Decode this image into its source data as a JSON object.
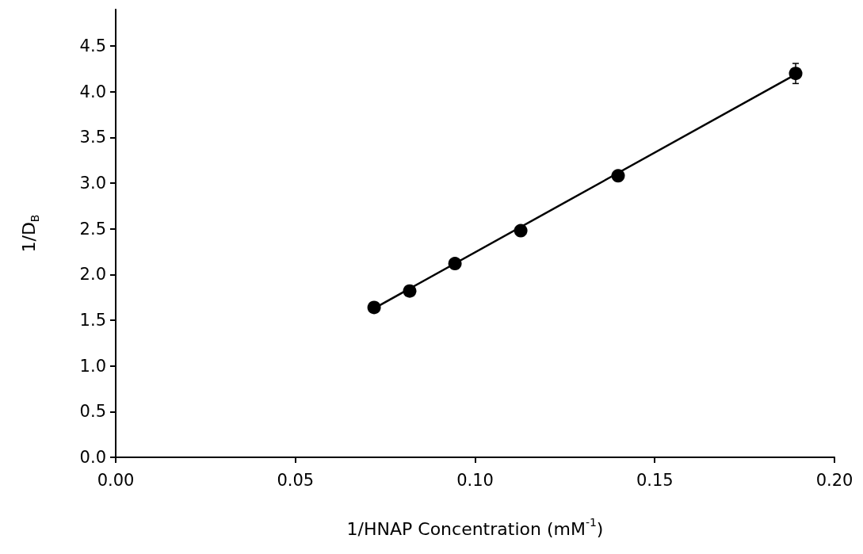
{
  "chart_data": {
    "type": "scatter",
    "xlabel": "1/HNAP Concentration (mM$^{-1}$)",
    "ylabel": "1/D$_{B}$",
    "xlim": [
      0,
      0.2
    ],
    "ylim": [
      0,
      4.9
    ],
    "xticks": [
      {
        "value": 0,
        "label": "0.00"
      },
      {
        "value": 0.05,
        "label": "0.05"
      },
      {
        "value": 0.1,
        "label": "0.10"
      },
      {
        "value": 0.15,
        "label": "0.15"
      },
      {
        "value": 0.2,
        "label": "0.20"
      }
    ],
    "yticks": [
      {
        "value": 0,
        "label": "0.0"
      },
      {
        "value": 0.5,
        "label": "0.5"
      },
      {
        "value": 1,
        "label": "1.0"
      },
      {
        "value": 1.5,
        "label": "1.5"
      },
      {
        "value": 2,
        "label": "2.0"
      },
      {
        "value": 2.5,
        "label": "2.5"
      },
      {
        "value": 3,
        "label": "3.0"
      },
      {
        "value": 3.5,
        "label": "3.5"
      },
      {
        "value": 4,
        "label": "4.0"
      },
      {
        "value": 4.5,
        "label": "4.5"
      }
    ],
    "grid": false,
    "marker": "circle",
    "series": [
      {
        "color": "#000000",
        "x": [
          0.0719,
          0.0818,
          0.0944,
          0.1127,
          0.1398,
          0.1892
        ],
        "values": [
          1.64,
          1.82,
          2.12,
          2.48,
          3.08,
          4.2
        ],
        "errors": [
          null,
          null,
          null,
          null,
          null,
          0.11
        ]
      },
      {
        "type": "line",
        "color": "#000000",
        "marker": "none",
        "line_style": "solid",
        "x": [
          0.0719,
          0.1892
        ],
        "values": [
          1.63,
          4.19
        ]
      }
    ]
  }
}
